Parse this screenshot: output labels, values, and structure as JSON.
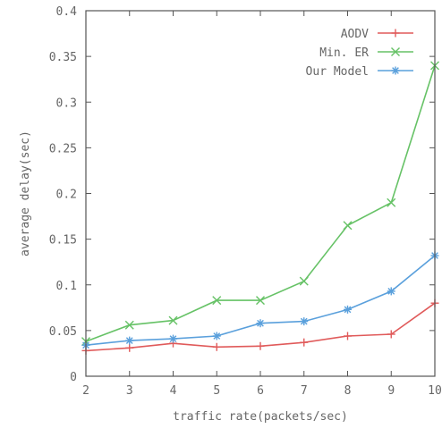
{
  "chart_data": {
    "type": "line",
    "xlabel": "traffic rate(packets/sec)",
    "ylabel": "average delay(sec)",
    "xlim": [
      2,
      10
    ],
    "ylim": [
      0,
      0.4
    ],
    "x": [
      2,
      3,
      4,
      5,
      6,
      7,
      8,
      9,
      10
    ],
    "x_tick_labels": [
      "2",
      "3",
      "4",
      "5",
      "6",
      "7",
      "8",
      "9",
      "10"
    ],
    "y_ticks": [
      0,
      0.05,
      0.1,
      0.15,
      0.2,
      0.25,
      0.3,
      0.35,
      0.4
    ],
    "y_tick_labels": [
      "0",
      "0.05",
      "0.1",
      "0.15",
      "0.2",
      "0.25",
      "0.3",
      "0.35",
      "0.4"
    ],
    "grid": false,
    "legend_position": "top-right",
    "series": [
      {
        "name": "AODV",
        "color": "#e05a5a",
        "marker": "plus",
        "values": [
          0.028,
          0.031,
          0.036,
          0.032,
          0.033,
          0.037,
          0.044,
          0.046,
          0.08
        ]
      },
      {
        "name": "Min. ER",
        "color": "#66c266",
        "marker": "cross",
        "values": [
          0.038,
          0.056,
          0.061,
          0.083,
          0.083,
          0.104,
          0.165,
          0.19,
          0.34
        ]
      },
      {
        "name": "Our Model",
        "color": "#5aa0dc",
        "marker": "star",
        "values": [
          0.034,
          0.039,
          0.041,
          0.044,
          0.058,
          0.06,
          0.073,
          0.093,
          0.132
        ]
      }
    ]
  }
}
